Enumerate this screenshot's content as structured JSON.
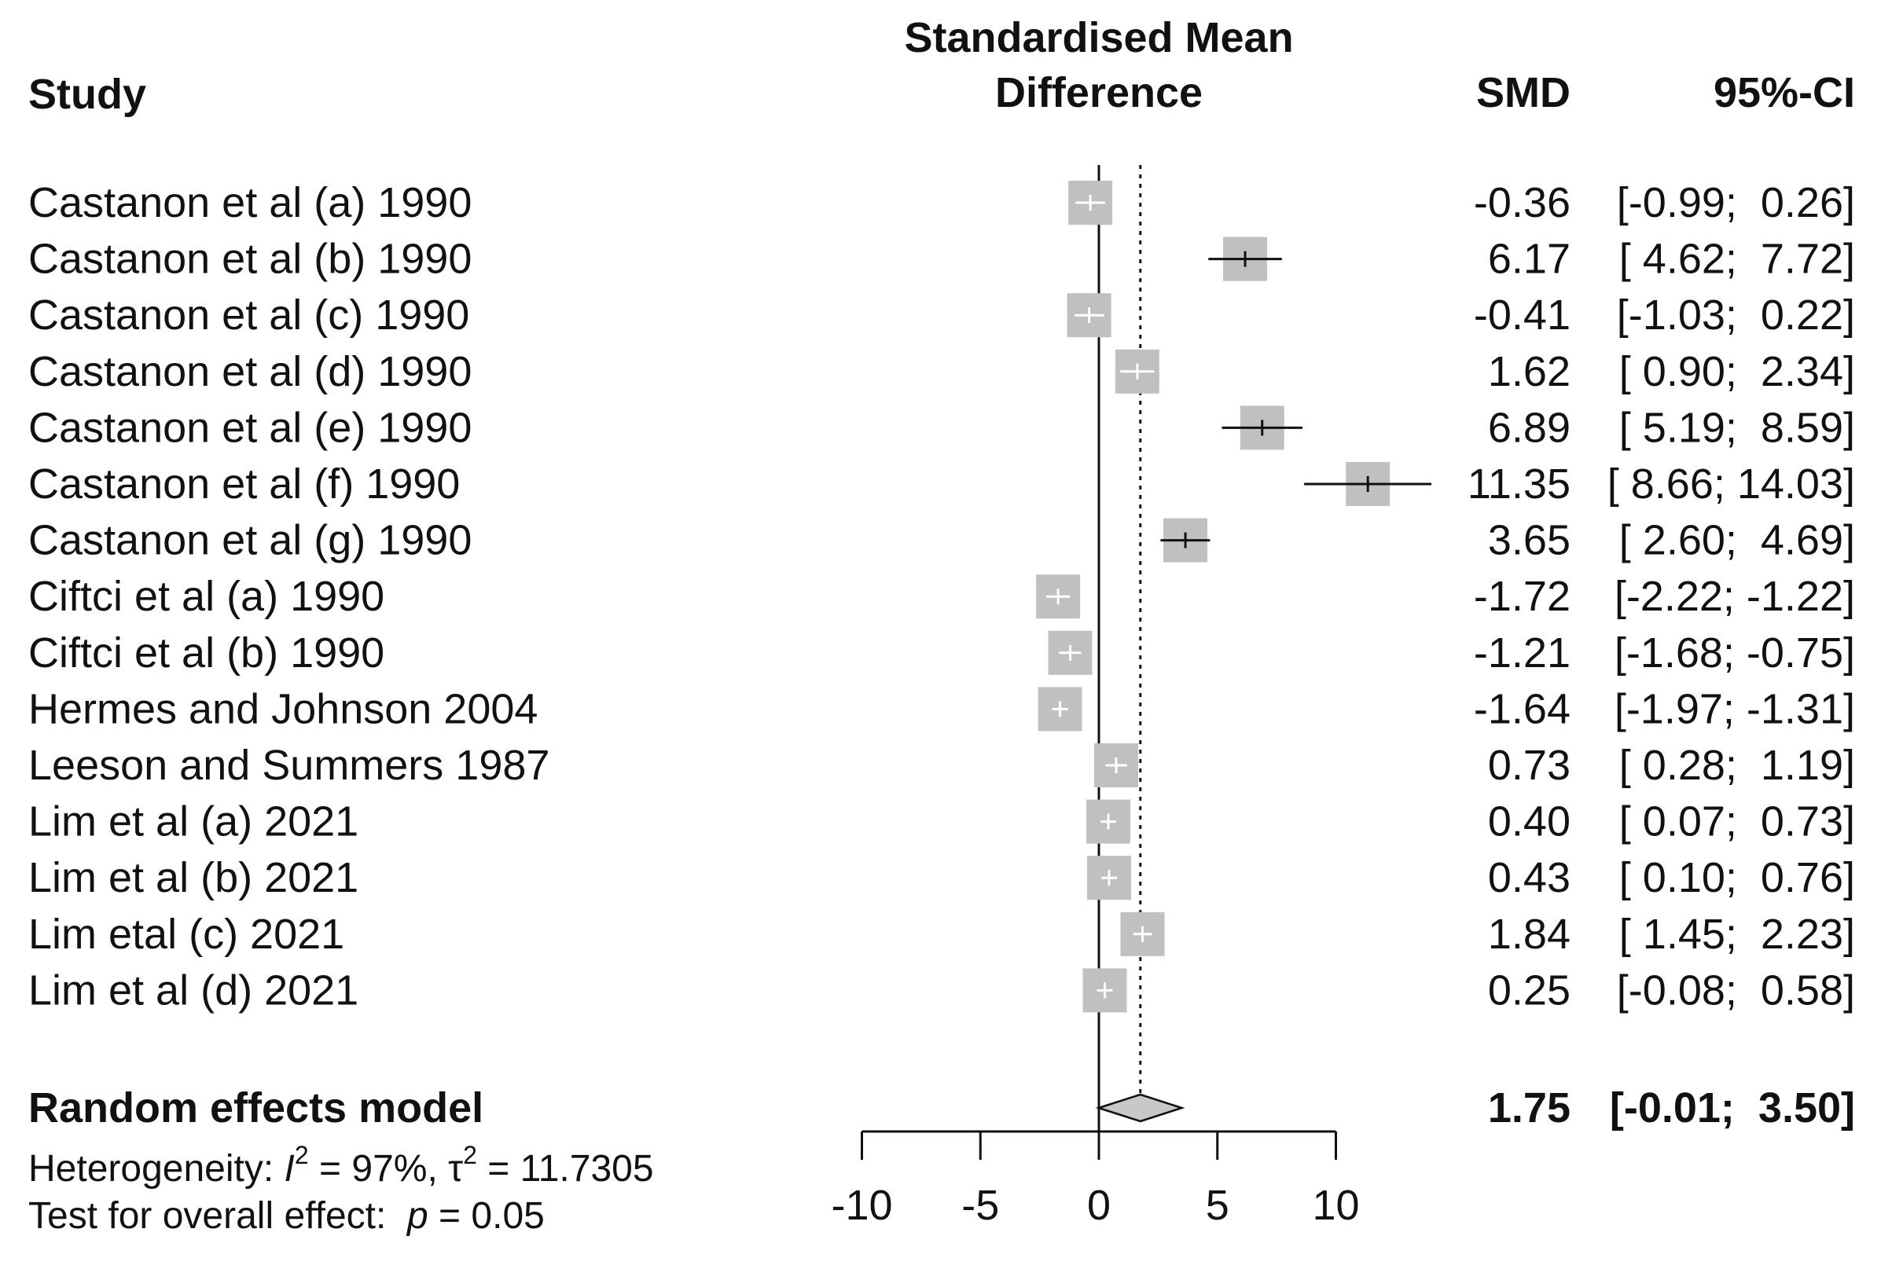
{
  "chart_data": {
    "type": "forest",
    "columns": {
      "study": "Study",
      "effect_line1": "Standardised Mean",
      "effect_line2": "Difference",
      "smd": "SMD",
      "ci": "95%-CI"
    },
    "studies": [
      {
        "label": "Castanon et al (a) 1990",
        "smd": -0.36,
        "lo": -0.99,
        "hi": 0.26,
        "smd_text": "-0.36",
        "ci_text": "[-0.99;  0.26]",
        "weight": 1
      },
      {
        "label": "Castanon et al (b) 1990",
        "smd": 6.17,
        "lo": 4.62,
        "hi": 7.72,
        "smd_text": "6.17",
        "ci_text": "[ 4.62;  7.72]",
        "weight": 1
      },
      {
        "label": "Castanon et al (c) 1990",
        "smd": -0.41,
        "lo": -1.03,
        "hi": 0.22,
        "smd_text": "-0.41",
        "ci_text": "[-1.03;  0.22]",
        "weight": 1
      },
      {
        "label": "Castanon et al (d) 1990",
        "smd": 1.62,
        "lo": 0.9,
        "hi": 2.34,
        "smd_text": "1.62",
        "ci_text": "[ 0.90;  2.34]",
        "weight": 1
      },
      {
        "label": "Castanon et al (e) 1990",
        "smd": 6.89,
        "lo": 5.19,
        "hi": 8.59,
        "smd_text": "6.89",
        "ci_text": "[ 5.19;  8.59]",
        "weight": 1
      },
      {
        "label": "Castanon et al (f) 1990",
        "smd": 11.35,
        "lo": 8.66,
        "hi": 14.03,
        "smd_text": "11.35",
        "ci_text": "[ 8.66; 14.03]",
        "weight": 1
      },
      {
        "label": "Castanon et al (g) 1990",
        "smd": 3.65,
        "lo": 2.6,
        "hi": 4.69,
        "smd_text": "3.65",
        "ci_text": "[ 2.60;  4.69]",
        "weight": 1
      },
      {
        "label": "Ciftci et al (a) 1990",
        "smd": -1.72,
        "lo": -2.22,
        "hi": -1.22,
        "smd_text": "-1.72",
        "ci_text": "[-2.22; -1.22]",
        "weight": 1
      },
      {
        "label": "Ciftci et al (b) 1990",
        "smd": -1.21,
        "lo": -1.68,
        "hi": -0.75,
        "smd_text": "-1.21",
        "ci_text": "[-1.68; -0.75]",
        "weight": 1
      },
      {
        "label": "Hermes and Johnson 2004",
        "smd": -1.64,
        "lo": -1.97,
        "hi": -1.31,
        "smd_text": "-1.64",
        "ci_text": "[-1.97; -1.31]",
        "weight": 1
      },
      {
        "label": "Leeson and Summers 1987",
        "smd": 0.73,
        "lo": 0.28,
        "hi": 1.19,
        "smd_text": "0.73",
        "ci_text": "[ 0.28;  1.19]",
        "weight": 1
      },
      {
        "label": "Lim et al (a) 2021",
        "smd": 0.4,
        "lo": 0.07,
        "hi": 0.73,
        "smd_text": "0.40",
        "ci_text": "[ 0.07;  0.73]",
        "weight": 1
      },
      {
        "label": "Lim et al (b) 2021",
        "smd": 0.43,
        "lo": 0.1,
        "hi": 0.76,
        "smd_text": "0.43",
        "ci_text": "[ 0.10;  0.76]",
        "weight": 1
      },
      {
        "label": "Lim etal (c) 2021",
        "smd": 1.84,
        "lo": 1.45,
        "hi": 2.23,
        "smd_text": "1.84",
        "ci_text": "[ 1.45;  2.23]",
        "weight": 1
      },
      {
        "label": "Lim et al (d) 2021",
        "smd": 0.25,
        "lo": -0.08,
        "hi": 0.58,
        "smd_text": "0.25",
        "ci_text": "[-0.08;  0.58]",
        "weight": 1
      }
    ],
    "pooled": {
      "label": "Random effects model",
      "smd": 1.75,
      "lo": -0.01,
      "hi": 3.5,
      "smd_text": "1.75",
      "ci_text": "[-0.01;  3.50]"
    },
    "heterogeneity": {
      "prefix": "Heterogeneity: ",
      "i2_symbol": "I",
      "i2_value": " = 97%, ",
      "tau2_symbol": "τ",
      "tau2_value": " = 11.7305",
      "superscript": "2"
    },
    "overall_effect": {
      "prefix": "Test for overall effect:  ",
      "p_symbol": "p",
      "p_value": " = 0.05"
    },
    "x_axis": {
      "ticks": [
        -10,
        -5,
        0,
        5,
        10
      ],
      "tick_labels": [
        "-10",
        "-5",
        "0",
        "5",
        "10"
      ],
      "range": [
        -10,
        10
      ],
      "null_value": 0
    },
    "colors": {
      "box": "#c0c0c0",
      "ci_line": "#111111",
      "diamond": "#c8c8c8",
      "text": "#111111"
    }
  }
}
